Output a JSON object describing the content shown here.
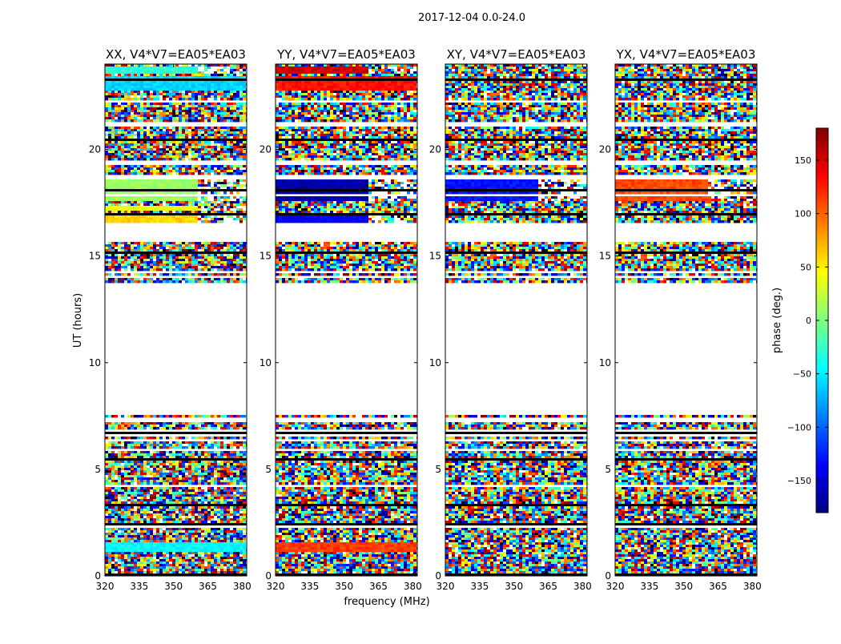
{
  "chart_data": {
    "type": "heatmap",
    "suptitle": "2017-12-04 0.0-24.0",
    "xlabel": "frequency (MHz)",
    "ylabel": "UT (hours)",
    "xlim": [
      320,
      382
    ],
    "ylim": [
      0,
      24
    ],
    "xticks": [
      320,
      335,
      350,
      365,
      380
    ],
    "yticks": [
      0,
      5,
      10,
      15,
      20
    ],
    "colorbar": {
      "label": "phase (deg.)",
      "range": [
        -180,
        180
      ],
      "ticks": [
        -150,
        -100,
        -50,
        0,
        50,
        100,
        150
      ],
      "colormap": "jet",
      "colors": [
        "#00007f",
        "#0000ff",
        "#007fff",
        "#00ffff",
        "#7fff7f",
        "#ffff00",
        "#ff7f00",
        "#ff0000",
        "#7f0000"
      ]
    },
    "panels": [
      {
        "title": "XX, V4*V7=EA05*EA03",
        "phase_bands": [
          {
            "ut": [
              16.6,
              16.9
            ],
            "freq": [
              320,
              360
            ],
            "phase": 60
          },
          {
            "ut": [
              16.6,
              16.9
            ],
            "freq": [
              365,
              382
            ],
            "phase": 0
          },
          {
            "ut": [
              17.1,
              17.4
            ],
            "freq": [
              320,
              360
            ],
            "phase": 40
          },
          {
            "ut": [
              17.6,
              18.8
            ],
            "freq": [
              320,
              360
            ],
            "phase": 10
          },
          {
            "ut": [
              17.6,
              18.8
            ],
            "freq": [
              377,
              382
            ],
            "phase": -30
          },
          {
            "ut": [
              1.1,
              1.6
            ],
            "freq": [
              320,
              382
            ],
            "phase": -45
          },
          {
            "ut": [
              22.8,
              23.4
            ],
            "freq": [
              320,
              382
            ],
            "phase": -60
          },
          {
            "ut": [
              23.6,
              23.9
            ],
            "freq": [
              320,
              360
            ],
            "phase": -30
          }
        ]
      },
      {
        "title": "YY, V4*V7=EA05*EA03",
        "phase_bands": [
          {
            "ut": [
              16.6,
              16.9
            ],
            "freq": [
              320,
              360
            ],
            "phase": -140
          },
          {
            "ut": [
              16.6,
              16.9
            ],
            "freq": [
              377,
              382
            ],
            "phase": -150
          },
          {
            "ut": [
              17.6,
              18.8
            ],
            "freq": [
              320,
              360
            ],
            "phase": -165
          },
          {
            "ut": [
              17.6,
              18.8
            ],
            "freq": [
              377,
              382
            ],
            "phase": 140
          },
          {
            "ut": [
              1.1,
              1.6
            ],
            "freq": [
              320,
              382
            ],
            "phase": 115
          },
          {
            "ut": [
              22.8,
              23.4
            ],
            "freq": [
              320,
              382
            ],
            "phase": 130
          },
          {
            "ut": [
              23.6,
              23.9
            ],
            "freq": [
              320,
              360
            ],
            "phase": 150
          }
        ]
      },
      {
        "title": "XY, V4*V7=EA05*EA03",
        "phase_bands": [
          {
            "ut": [
              17.6,
              18.8
            ],
            "freq": [
              320,
              360
            ],
            "phase": -130
          }
        ]
      },
      {
        "title": "YX, V4*V7=EA05*EA03",
        "phase_bands": [
          {
            "ut": [
              17.6,
              18.8
            ],
            "freq": [
              320,
              360
            ],
            "phase": 110
          }
        ]
      }
    ]
  }
}
